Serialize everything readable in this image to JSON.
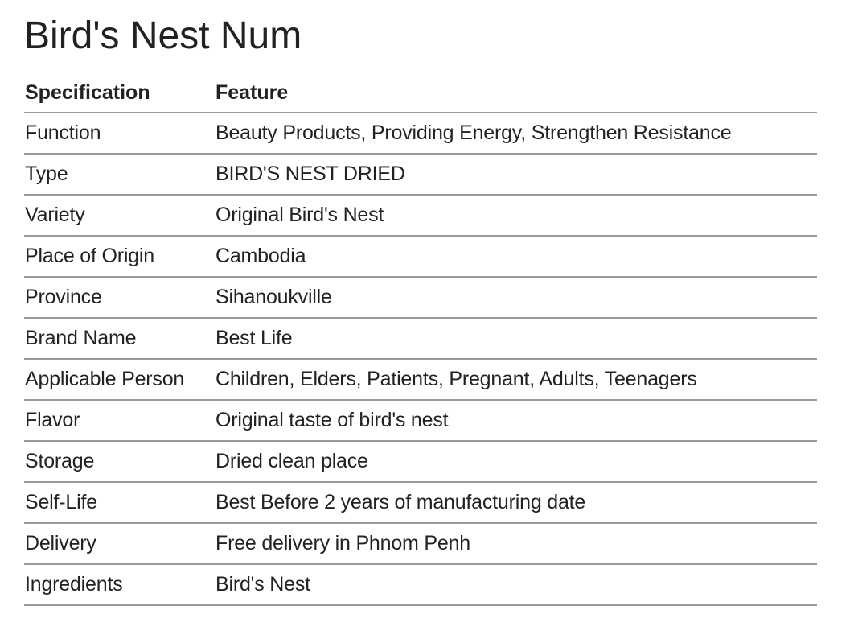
{
  "page": {
    "title": "Bird's Nest Num"
  },
  "table": {
    "headers": [
      "Specification",
      "Feature"
    ],
    "rows": [
      {
        "spec": "Function",
        "feature": "Beauty Products, Providing Energy, Strengthen Resistance"
      },
      {
        "spec": "Type",
        "feature": "BIRD'S NEST DRIED"
      },
      {
        "spec": "Variety",
        "feature": "Original Bird's Nest"
      },
      {
        "spec": "Place of Origin",
        "feature": "Cambodia"
      },
      {
        "spec": "Province",
        "feature": "Sihanoukville"
      },
      {
        "spec": "Brand Name",
        "feature": "Best Life"
      },
      {
        "spec": "Applicable Person",
        "feature": "Children, Elders, Patients, Pregnant, Adults, Teenagers"
      },
      {
        "spec": "Flavor",
        "feature": "Original taste of bird's nest"
      },
      {
        "spec": "Storage",
        "feature": "Dried clean place"
      },
      {
        "spec": "Self-Life",
        "feature": "Best Before 2 years of manufacturing date"
      },
      {
        "spec": "Delivery",
        "feature": "Free delivery in Phnom Penh"
      },
      {
        "spec": "Ingredients",
        "feature": "Bird's Nest"
      }
    ]
  },
  "colors": {
    "text": "#222222",
    "rule": "#9a9a9a",
    "background": "#ffffff"
  }
}
